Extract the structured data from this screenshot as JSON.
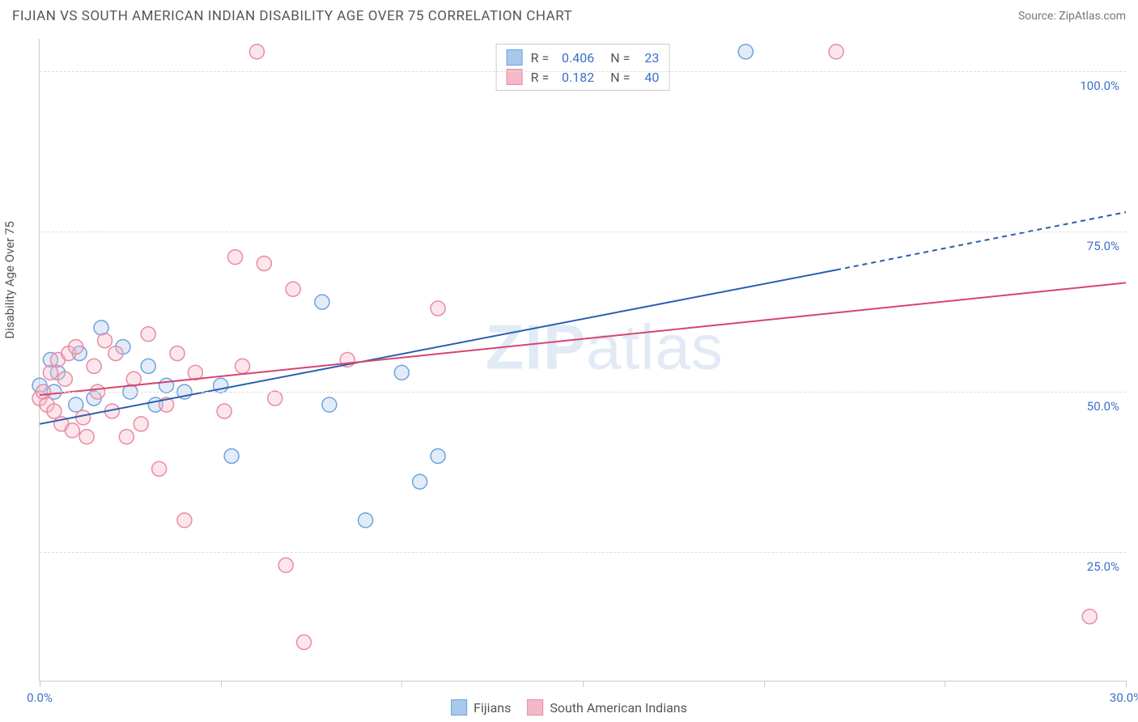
{
  "header": {
    "title": "FIJIAN VS SOUTH AMERICAN INDIAN DISABILITY AGE OVER 75 CORRELATION CHART",
    "source": "Source: ZipAtlas.com"
  },
  "watermark": {
    "part1": "ZIP",
    "part2": "atlas"
  },
  "chart": {
    "type": "scatter",
    "ylabel": "Disability Age Over 75",
    "xlim": [
      0,
      30
    ],
    "ylim": [
      5,
      105
    ],
    "xtick_positions": [
      0,
      5,
      10,
      15,
      20,
      25,
      30
    ],
    "xtick_labels_shown": {
      "0": "0.0%",
      "30": "30.0%"
    },
    "ytick_positions": [
      25,
      50,
      75,
      100
    ],
    "ytick_labels": [
      "25.0%",
      "50.0%",
      "75.0%",
      "100.0%"
    ],
    "grid_color": "#dddddd",
    "axis_color": "#cccccc",
    "background_color": "#ffffff",
    "tick_label_color": "#3b6fc9",
    "label_fontsize": 15,
    "point_radius": 9,
    "point_fill_opacity": 0.35,
    "point_stroke_width": 1.5,
    "series": [
      {
        "name": "Fijians",
        "color_fill": "#a8c8ec",
        "color_stroke": "#6fa3dd",
        "R": "0.406",
        "N": "23",
        "trend": {
          "x1": 0,
          "y1": 45,
          "x2_solid": 22,
          "y2_solid": 69,
          "x2_dash": 30,
          "y2_dash": 78,
          "color": "#2a5db0",
          "width": 2
        },
        "points": [
          [
            0.0,
            51
          ],
          [
            0.3,
            55
          ],
          [
            0.4,
            50
          ],
          [
            0.5,
            53
          ],
          [
            1.0,
            48
          ],
          [
            1.1,
            56
          ],
          [
            1.5,
            49
          ],
          [
            1.7,
            60
          ],
          [
            2.3,
            57
          ],
          [
            2.5,
            50
          ],
          [
            3.0,
            54
          ],
          [
            3.2,
            48
          ],
          [
            3.5,
            51
          ],
          [
            4.0,
            50
          ],
          [
            5.0,
            51
          ],
          [
            5.3,
            40
          ],
          [
            7.8,
            64
          ],
          [
            8.0,
            48
          ],
          [
            9.0,
            30
          ],
          [
            10.0,
            53
          ],
          [
            10.5,
            36
          ],
          [
            11.0,
            40
          ],
          [
            19.5,
            103
          ]
        ]
      },
      {
        "name": "South American Indians",
        "color_fill": "#f5b8c8",
        "color_stroke": "#e88ba3",
        "R": "0.182",
        "N": "40",
        "trend": {
          "x1": 0,
          "y1": 49.5,
          "x2_solid": 30,
          "y2_solid": 67,
          "x2_dash": 30,
          "y2_dash": 67,
          "color": "#d6456f",
          "width": 2
        },
        "points": [
          [
            0.0,
            49
          ],
          [
            0.1,
            50
          ],
          [
            0.2,
            48
          ],
          [
            0.3,
            53
          ],
          [
            0.4,
            47
          ],
          [
            0.5,
            55
          ],
          [
            0.6,
            45
          ],
          [
            0.7,
            52
          ],
          [
            0.8,
            56
          ],
          [
            0.9,
            44
          ],
          [
            1.0,
            57
          ],
          [
            1.2,
            46
          ],
          [
            1.3,
            43
          ],
          [
            1.5,
            54
          ],
          [
            1.6,
            50
          ],
          [
            1.8,
            58
          ],
          [
            2.0,
            47
          ],
          [
            2.1,
            56
          ],
          [
            2.4,
            43
          ],
          [
            2.6,
            52
          ],
          [
            2.8,
            45
          ],
          [
            3.0,
            59
          ],
          [
            3.3,
            38
          ],
          [
            3.5,
            48
          ],
          [
            3.8,
            56
          ],
          [
            4.0,
            30
          ],
          [
            4.3,
            53
          ],
          [
            5.1,
            47
          ],
          [
            5.4,
            71
          ],
          [
            5.6,
            54
          ],
          [
            6.0,
            103
          ],
          [
            6.2,
            70
          ],
          [
            6.5,
            49
          ],
          [
            6.8,
            23
          ],
          [
            7.0,
            66
          ],
          [
            7.3,
            11
          ],
          [
            8.5,
            55
          ],
          [
            11.0,
            63
          ],
          [
            22.0,
            103
          ],
          [
            29.0,
            15
          ]
        ]
      }
    ]
  },
  "legend_top": {
    "r_label": "R =",
    "n_label": "N ="
  },
  "legend_bottom": {
    "items": [
      "Fijians",
      "South American Indians"
    ]
  }
}
